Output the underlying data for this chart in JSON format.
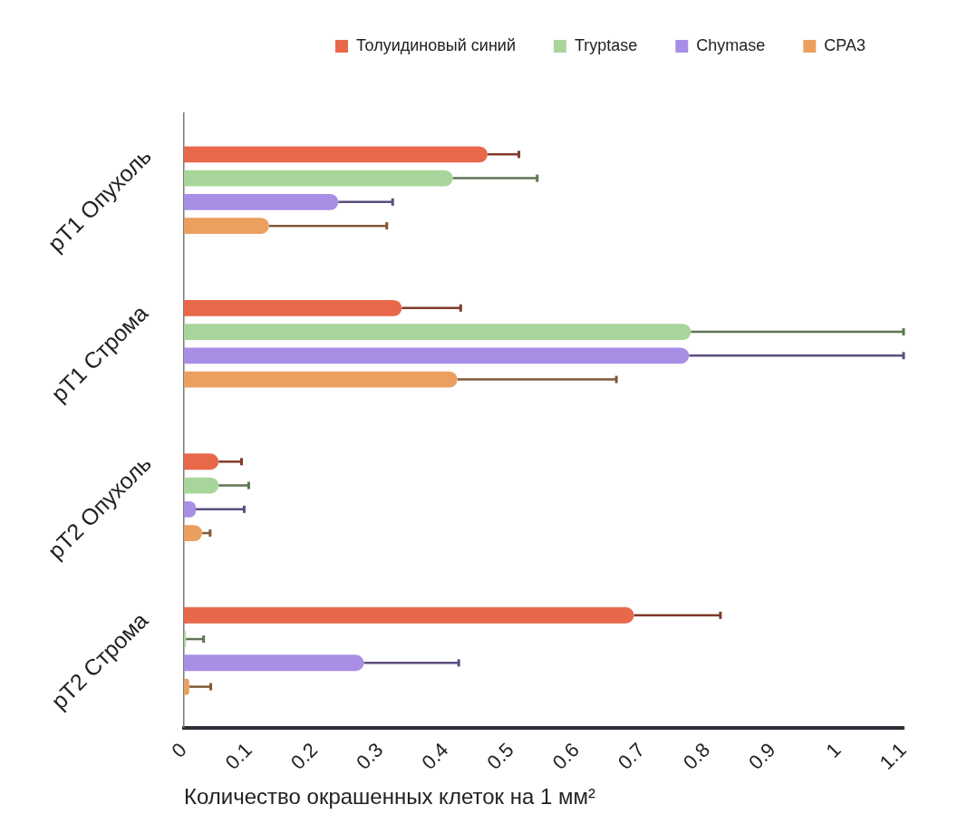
{
  "chart_data": {
    "type": "bar",
    "orientation": "horizontal",
    "xlabel": "Количество окрашенных клеток на 1 мм²",
    "categories": [
      "pT1 Опухоль",
      "pT1 Строма",
      "pT2 Опухоль",
      "pT2 Строма"
    ],
    "xlim": [
      0,
      1.1
    ],
    "xticks": [
      0,
      0.1,
      0.2,
      0.3,
      0.4,
      0.5,
      0.6,
      0.7,
      0.8,
      0.9,
      1,
      1.1
    ],
    "grid": false,
    "legend": "top right",
    "series": [
      {
        "name": "Толуидиновый синий",
        "color": "#e8694a",
        "values": [
          0.464,
          0.333,
          0.053,
          0.688
        ],
        "errors": [
          [
            0.464,
            0.512
          ],
          [
            0.333,
            0.423
          ],
          [
            0.053,
            0.088
          ],
          [
            0.688,
            0.82
          ]
        ]
      },
      {
        "name": "Tryptase",
        "color": "#a8d69a",
        "values": [
          0.411,
          0.775,
          0.053,
          0.003
        ],
        "errors": [
          [
            0.411,
            0.54
          ],
          [
            0.775,
            1.1
          ],
          [
            0.053,
            0.099
          ],
          [
            0.003,
            0.03
          ]
        ]
      },
      {
        "name": "Chymase",
        "color": "#a98ee6",
        "values": [
          0.236,
          0.772,
          0.018,
          0.275
        ],
        "errors": [
          [
            0.236,
            0.319
          ],
          [
            0.772,
            1.1
          ],
          [
            0.018,
            0.092
          ],
          [
            0.275,
            0.42
          ]
        ]
      },
      {
        "name": "CPA3",
        "color": "#eba060",
        "values": [
          0.13,
          0.418,
          0.028,
          0.008
        ],
        "errors": [
          [
            0.13,
            0.31
          ],
          [
            0.418,
            0.661
          ],
          [
            0.028,
            0.04
          ],
          [
            0.008,
            0.041
          ]
        ]
      }
    ]
  }
}
